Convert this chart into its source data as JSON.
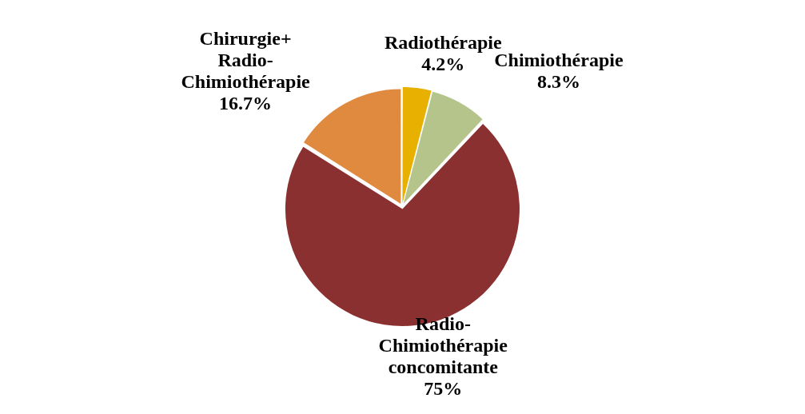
{
  "chart_data": {
    "type": "pie",
    "categories": [
      "Radiothérapie",
      "Chimiothérapie",
      "Radio-Chimiothérapie concomitante",
      "Chirurgie+ Radio-Chimiothérapie"
    ],
    "values": [
      4.2,
      8.3,
      75,
      16.7
    ],
    "value_labels": [
      "4.2%",
      "8.3%",
      "75%",
      "16.7%"
    ],
    "colors": [
      "#e8b000",
      "#b5c48a",
      "#8b3030",
      "#e08a40"
    ],
    "legend": false
  }
}
